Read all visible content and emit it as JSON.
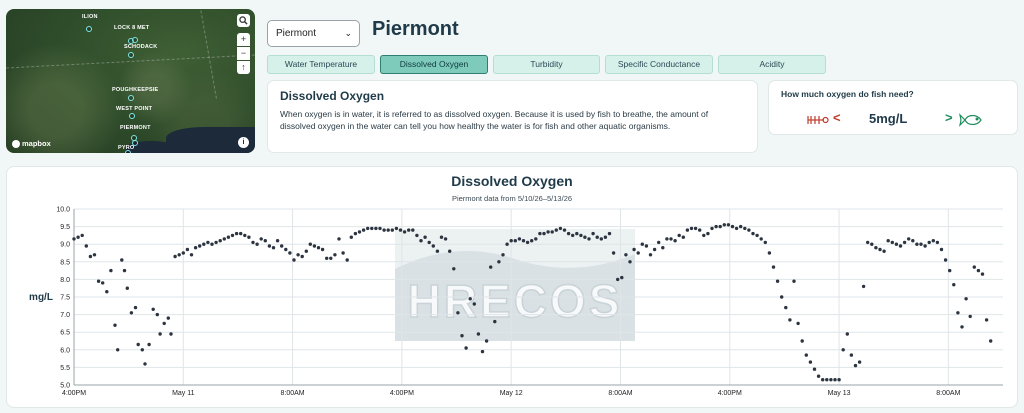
{
  "map": {
    "labels": [
      "ILION",
      "LOCK 8 MET",
      "SCHODACK",
      "POUGHKEEPSIE",
      "WEST POINT",
      "PIERMONT",
      "PYRO"
    ],
    "attribution": "mapbox",
    "zoom_in": "+",
    "zoom_out": "−",
    "compass": "↑",
    "info": "i"
  },
  "header": {
    "station_select": "Piermont",
    "station_title": "Piermont"
  },
  "tabs": [
    {
      "label": "Water Temperature",
      "active": false
    },
    {
      "label": "Dissolved Oxygen",
      "active": true
    },
    {
      "label": "Turbidity",
      "active": false
    },
    {
      "label": "Specific Conductance",
      "active": false
    },
    {
      "label": "Acidity",
      "active": false
    }
  ],
  "info": {
    "heading": "Dissolved Oxygen",
    "body": "When oxygen is in water, it is referred to as dissolved oxygen. Because it is used by fish to breathe, the amount of dissolved oxygen in the water can tell you how healthy the water is for fish and other aquatic organisms."
  },
  "fish": {
    "question": "How much oxygen do fish need?",
    "value": "5mg/L",
    "less": "<",
    "more": ">"
  },
  "colors": {
    "accent": "#7fcbbb",
    "dead_fish": "#c23a2a",
    "live_fish": "#1e8d5c",
    "points": "#2c3440"
  },
  "chart_data": {
    "type": "scatter",
    "title": "Dissolved Oxygen",
    "subtitle": "Piermont data from 5/10/26–5/13/26",
    "ylabel": "mg/L",
    "xlabel": "",
    "ylim": [
      5.0,
      10.0
    ],
    "yticks": [
      "5.0",
      "5.5",
      "6.0",
      "6.5",
      "7.0",
      "7.5",
      "8.0",
      "8.5",
      "9.0",
      "9.5",
      "10.0"
    ],
    "xlim_hours": [
      0,
      68
    ],
    "xticks": [
      {
        "h": 0,
        "label": "4:00PM"
      },
      {
        "h": 8,
        "label": "May 11"
      },
      {
        "h": 16,
        "label": "8:00AM"
      },
      {
        "h": 24,
        "label": "4:00PM"
      },
      {
        "h": 32,
        "label": "May 12"
      },
      {
        "h": 40,
        "label": "8:00AM"
      },
      {
        "h": 48,
        "label": "4:00PM"
      },
      {
        "h": 56,
        "label": "May 13"
      },
      {
        "h": 64,
        "label": "8:00AM"
      }
    ],
    "watermark": "HRECOS",
    "grid": true,
    "points": [
      [
        0.0,
        9.15
      ],
      [
        0.3,
        9.2
      ],
      [
        0.6,
        9.25
      ],
      [
        0.9,
        8.95
      ],
      [
        1.2,
        8.65
      ],
      [
        1.5,
        8.7
      ],
      [
        1.8,
        7.95
      ],
      [
        2.1,
        7.9
      ],
      [
        2.4,
        7.65
      ],
      [
        2.7,
        8.25
      ],
      [
        3.0,
        6.7
      ],
      [
        3.2,
        6.0
      ],
      [
        3.5,
        8.55
      ],
      [
        3.7,
        8.25
      ],
      [
        3.9,
        7.75
      ],
      [
        4.2,
        7.05
      ],
      [
        4.5,
        7.2
      ],
      [
        4.7,
        6.15
      ],
      [
        5.0,
        6.0
      ],
      [
        5.2,
        5.6
      ],
      [
        5.5,
        6.15
      ],
      [
        5.8,
        7.15
      ],
      [
        6.1,
        7.0
      ],
      [
        6.3,
        6.45
      ],
      [
        6.6,
        6.75
      ],
      [
        6.9,
        6.9
      ],
      [
        7.1,
        6.45
      ],
      [
        7.4,
        8.65
      ],
      [
        7.7,
        8.7
      ],
      [
        8.0,
        8.75
      ],
      [
        8.3,
        8.85
      ],
      [
        8.6,
        8.7
      ],
      [
        8.9,
        8.9
      ],
      [
        9.2,
        8.95
      ],
      [
        9.5,
        9.0
      ],
      [
        9.8,
        9.05
      ],
      [
        10.1,
        9.0
      ],
      [
        10.4,
        9.05
      ],
      [
        10.7,
        9.1
      ],
      [
        11.0,
        9.15
      ],
      [
        11.3,
        9.2
      ],
      [
        11.6,
        9.25
      ],
      [
        11.9,
        9.3
      ],
      [
        12.2,
        9.3
      ],
      [
        12.5,
        9.25
      ],
      [
        12.8,
        9.2
      ],
      [
        13.1,
        9.05
      ],
      [
        13.4,
        9.0
      ],
      [
        13.7,
        9.15
      ],
      [
        14.0,
        9.1
      ],
      [
        14.3,
        8.95
      ],
      [
        14.6,
        8.9
      ],
      [
        14.9,
        9.1
      ],
      [
        15.2,
        8.95
      ],
      [
        15.5,
        8.85
      ],
      [
        15.8,
        8.75
      ],
      [
        16.1,
        8.55
      ],
      [
        16.4,
        8.7
      ],
      [
        16.7,
        8.65
      ],
      [
        17.0,
        8.8
      ],
      [
        17.3,
        9.0
      ],
      [
        17.6,
        8.95
      ],
      [
        17.9,
        8.9
      ],
      [
        18.2,
        8.85
      ],
      [
        18.5,
        8.6
      ],
      [
        18.8,
        8.6
      ],
      [
        19.1,
        8.7
      ],
      [
        19.4,
        9.15
      ],
      [
        19.7,
        8.75
      ],
      [
        20.0,
        8.55
      ],
      [
        20.3,
        9.2
      ],
      [
        20.6,
        9.3
      ],
      [
        20.9,
        9.35
      ],
      [
        21.2,
        9.4
      ],
      [
        21.5,
        9.45
      ],
      [
        21.8,
        9.45
      ],
      [
        22.1,
        9.45
      ],
      [
        22.4,
        9.45
      ],
      [
        22.7,
        9.4
      ],
      [
        23.0,
        9.4
      ],
      [
        23.3,
        9.4
      ],
      [
        23.6,
        9.45
      ],
      [
        23.9,
        9.4
      ],
      [
        24.2,
        9.35
      ],
      [
        24.5,
        9.4
      ],
      [
        24.8,
        9.4
      ],
      [
        25.1,
        9.25
      ],
      [
        25.4,
        9.1
      ],
      [
        25.7,
        9.2
      ],
      [
        26.0,
        9.05
      ],
      [
        26.3,
        8.95
      ],
      [
        26.6,
        8.8
      ],
      [
        26.9,
        9.2
      ],
      [
        27.2,
        9.15
      ],
      [
        27.5,
        8.8
      ],
      [
        27.8,
        8.3
      ],
      [
        28.1,
        7.05
      ],
      [
        28.4,
        6.4
      ],
      [
        28.7,
        6.05
      ],
      [
        29.0,
        7.45
      ],
      [
        29.3,
        7.3
      ],
      [
        29.6,
        6.45
      ],
      [
        29.9,
        5.95
      ],
      [
        30.2,
        6.25
      ],
      [
        30.5,
        8.35
      ],
      [
        30.8,
        6.8
      ],
      [
        31.1,
        8.5
      ],
      [
        31.4,
        8.7
      ],
      [
        31.7,
        9.0
      ],
      [
        32.0,
        9.1
      ],
      [
        32.3,
        9.1
      ],
      [
        32.6,
        9.15
      ],
      [
        32.9,
        9.1
      ],
      [
        33.2,
        9.05
      ],
      [
        33.5,
        9.1
      ],
      [
        33.8,
        9.15
      ],
      [
        34.1,
        9.3
      ],
      [
        34.4,
        9.3
      ],
      [
        34.7,
        9.35
      ],
      [
        35.0,
        9.35
      ],
      [
        35.3,
        9.4
      ],
      [
        35.6,
        9.45
      ],
      [
        35.9,
        9.4
      ],
      [
        36.2,
        9.3
      ],
      [
        36.5,
        9.25
      ],
      [
        36.8,
        9.3
      ],
      [
        37.1,
        9.25
      ],
      [
        37.4,
        9.2
      ],
      [
        37.7,
        9.15
      ],
      [
        38.0,
        9.3
      ],
      [
        38.3,
        9.2
      ],
      [
        38.6,
        9.15
      ],
      [
        38.9,
        9.2
      ],
      [
        39.2,
        9.3
      ],
      [
        39.5,
        8.75
      ],
      [
        39.8,
        8.0
      ],
      [
        40.1,
        8.05
      ],
      [
        40.4,
        8.7
      ],
      [
        40.7,
        8.5
      ],
      [
        41.0,
        8.85
      ],
      [
        41.3,
        8.75
      ],
      [
        41.6,
        9.0
      ],
      [
        41.9,
        8.95
      ],
      [
        42.2,
        8.7
      ],
      [
        42.5,
        8.85
      ],
      [
        42.8,
        9.05
      ],
      [
        43.1,
        8.9
      ],
      [
        43.4,
        9.15
      ],
      [
        43.7,
        9.15
      ],
      [
        44.0,
        9.1
      ],
      [
        44.3,
        9.25
      ],
      [
        44.6,
        9.2
      ],
      [
        44.9,
        9.4
      ],
      [
        45.2,
        9.45
      ],
      [
        45.5,
        9.45
      ],
      [
        45.8,
        9.4
      ],
      [
        46.1,
        9.25
      ],
      [
        46.4,
        9.3
      ],
      [
        46.7,
        9.45
      ],
      [
        47.0,
        9.5
      ],
      [
        47.3,
        9.5
      ],
      [
        47.6,
        9.55
      ],
      [
        47.9,
        9.55
      ],
      [
        48.2,
        9.5
      ],
      [
        48.5,
        9.45
      ],
      [
        48.8,
        9.5
      ],
      [
        49.1,
        9.45
      ],
      [
        49.4,
        9.4
      ],
      [
        49.7,
        9.3
      ],
      [
        50.0,
        9.25
      ],
      [
        50.3,
        9.15
      ],
      [
        50.6,
        9.05
      ],
      [
        50.9,
        8.75
      ],
      [
        51.2,
        8.35
      ],
      [
        51.5,
        7.95
      ],
      [
        51.8,
        7.5
      ],
      [
        52.1,
        7.2
      ],
      [
        52.4,
        6.85
      ],
      [
        52.7,
        7.95
      ],
      [
        53.0,
        6.75
      ],
      [
        53.3,
        6.25
      ],
      [
        53.6,
        5.85
      ],
      [
        53.9,
        5.65
      ],
      [
        54.2,
        5.45
      ],
      [
        54.5,
        5.25
      ],
      [
        54.8,
        5.15
      ],
      [
        55.1,
        5.15
      ],
      [
        55.4,
        5.15
      ],
      [
        55.7,
        5.15
      ],
      [
        56.0,
        5.15
      ],
      [
        56.3,
        6.0
      ],
      [
        56.6,
        6.45
      ],
      [
        56.9,
        5.85
      ],
      [
        57.2,
        5.55
      ],
      [
        57.5,
        5.65
      ],
      [
        57.8,
        7.8
      ],
      [
        58.1,
        9.05
      ],
      [
        58.4,
        9.0
      ],
      [
        58.7,
        8.9
      ],
      [
        59.0,
        8.85
      ],
      [
        59.3,
        8.8
      ],
      [
        59.6,
        9.1
      ],
      [
        59.9,
        9.05
      ],
      [
        60.2,
        9.0
      ],
      [
        60.5,
        8.95
      ],
      [
        60.8,
        9.05
      ],
      [
        61.1,
        9.15
      ],
      [
        61.4,
        9.1
      ],
      [
        61.7,
        9.0
      ],
      [
        62.0,
        9.0
      ],
      [
        62.3,
        8.95
      ],
      [
        62.6,
        9.05
      ],
      [
        62.9,
        9.1
      ],
      [
        63.2,
        9.05
      ],
      [
        63.5,
        8.85
      ],
      [
        63.8,
        8.55
      ],
      [
        64.1,
        8.25
      ],
      [
        64.4,
        7.85
      ],
      [
        64.7,
        7.05
      ],
      [
        65.0,
        6.65
      ],
      [
        65.3,
        7.45
      ],
      [
        65.6,
        6.95
      ],
      [
        65.9,
        8.35
      ],
      [
        66.2,
        8.25
      ],
      [
        66.5,
        8.15
      ],
      [
        66.8,
        6.85
      ],
      [
        67.1,
        6.25
      ]
    ]
  }
}
